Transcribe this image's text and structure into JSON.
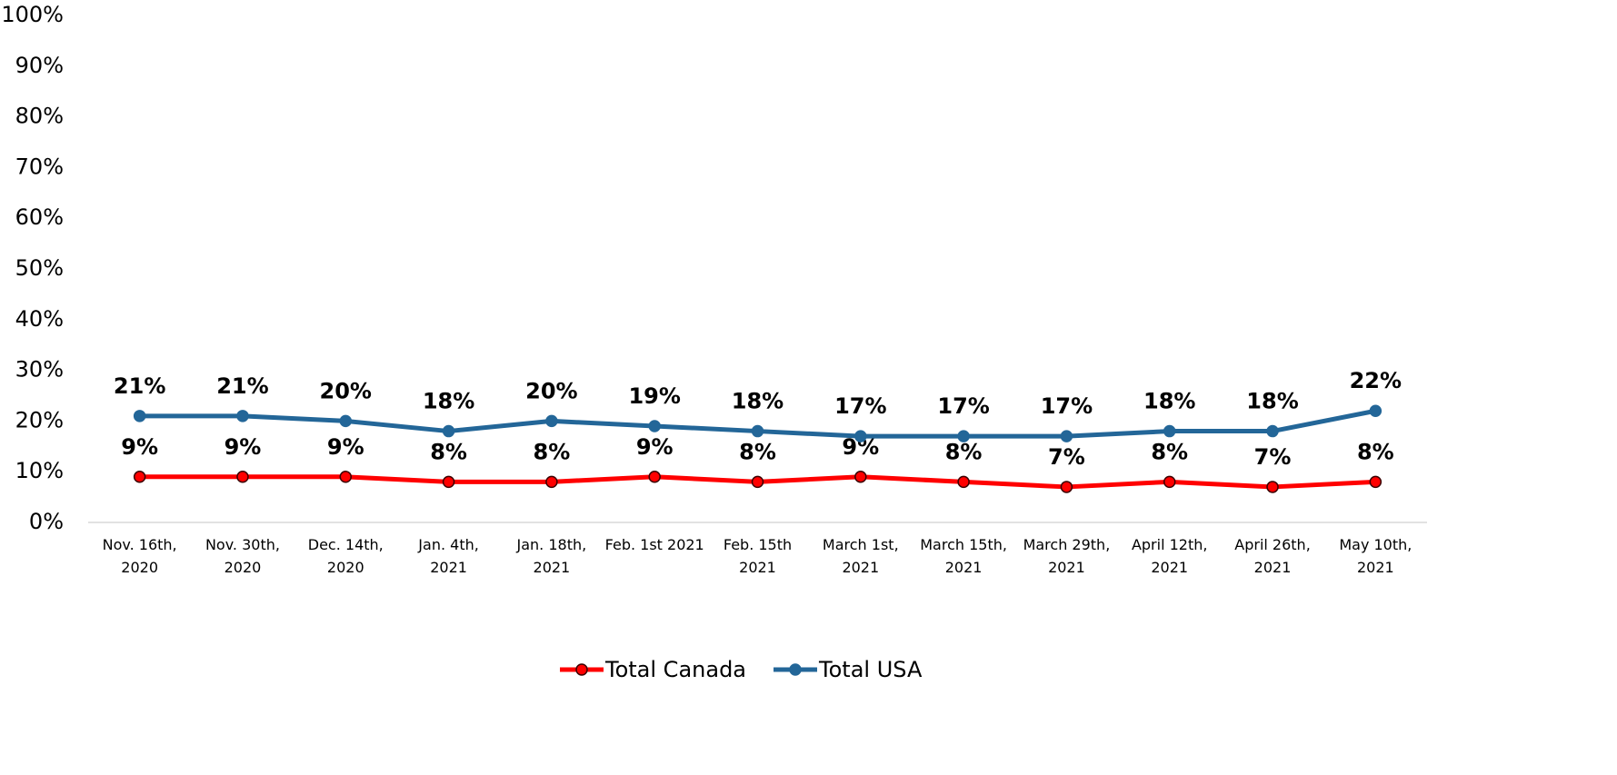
{
  "chart_data": {
    "type": "line",
    "categories": [
      "Nov. 16th, 2020",
      "Nov. 30th, 2020",
      "Dec. 14th, 2020",
      "Jan. 4th, 2021",
      "Jan. 18th, 2021",
      "Feb. 1st 2021",
      "Feb. 15th 2021",
      "March 1st, 2021",
      "March 15th, 2021",
      "March 29th, 2021",
      "April 12th, 2021",
      "April 26th, 2021",
      "May 10th, 2021"
    ],
    "series": [
      {
        "name": "Total Canada",
        "color": "#ff0000",
        "values": [
          9,
          9,
          9,
          8,
          8,
          9,
          8,
          9,
          8,
          7,
          8,
          7,
          8
        ],
        "value_labels": [
          "9%",
          "9%",
          "9%",
          "8%",
          "8%",
          "9%",
          "8%",
          "9%",
          "8%",
          "7%",
          "8%",
          "7%",
          "8%"
        ]
      },
      {
        "name": "Total USA",
        "color": "#236698",
        "values": [
          21,
          21,
          20,
          18,
          20,
          19,
          18,
          17,
          17,
          17,
          18,
          18,
          22
        ],
        "value_labels": [
          "21%",
          "21%",
          "20%",
          "18%",
          "20%",
          "19%",
          "18%",
          "17%",
          "17%",
          "17%",
          "18%",
          "18%",
          "22%"
        ]
      }
    ],
    "ylim": [
      0,
      100
    ],
    "yticks": [
      {
        "value": 0,
        "label": "0%"
      },
      {
        "value": 10,
        "label": "10%"
      },
      {
        "value": 20,
        "label": "20%"
      },
      {
        "value": 30,
        "label": "30%"
      },
      {
        "value": 40,
        "label": "40%"
      },
      {
        "value": 50,
        "label": "50%"
      },
      {
        "value": 60,
        "label": "60%"
      },
      {
        "value": 70,
        "label": "70%"
      },
      {
        "value": 80,
        "label": "80%"
      },
      {
        "value": 90,
        "label": "90%"
      },
      {
        "value": 100,
        "label": "100%"
      }
    ],
    "grid": false,
    "legend": "bottom"
  }
}
